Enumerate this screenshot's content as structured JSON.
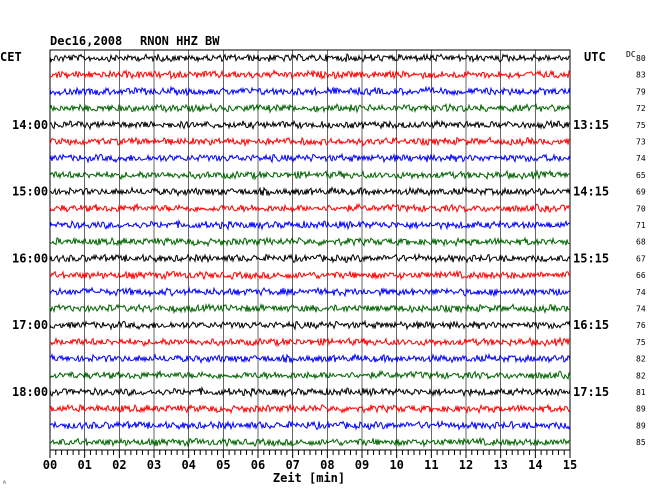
{
  "header": {
    "date": "Dec16,2008",
    "station": "RNON HHZ BW",
    "left_tz": "CET",
    "right_tz": "UTC",
    "dc_label": "DC",
    "corner_mark": "ᴬ"
  },
  "chart_data": {
    "type": "line",
    "title": "Dec16,2008   RNON HHZ BW",
    "xlabel": "Zeit [min]",
    "ylabel": "",
    "xlim": [
      0,
      15
    ],
    "x_ticks": [
      "00",
      "01",
      "02",
      "03",
      "04",
      "05",
      "06",
      "07",
      "08",
      "09",
      "10",
      "11",
      "12",
      "13",
      "14",
      "15"
    ],
    "grid": true,
    "trace_colors": [
      "#000000",
      "#ff0000",
      "#0000ff",
      "#006400"
    ],
    "left_hour_labels": [
      "14:00",
      "15:00",
      "16:00",
      "17:00",
      "18:00"
    ],
    "right_hour_labels": [
      "13:15",
      "14:15",
      "15:15",
      "16:15",
      "17:15"
    ],
    "hour_label_trace_index": [
      4,
      8,
      12,
      16,
      20
    ],
    "dc_offsets": [
      80,
      83,
      79,
      72,
      75,
      73,
      74,
      65,
      69,
      70,
      71,
      68,
      67,
      66,
      74,
      74,
      76,
      75,
      82,
      82,
      81,
      89,
      89,
      85
    ],
    "traces": 24
  }
}
